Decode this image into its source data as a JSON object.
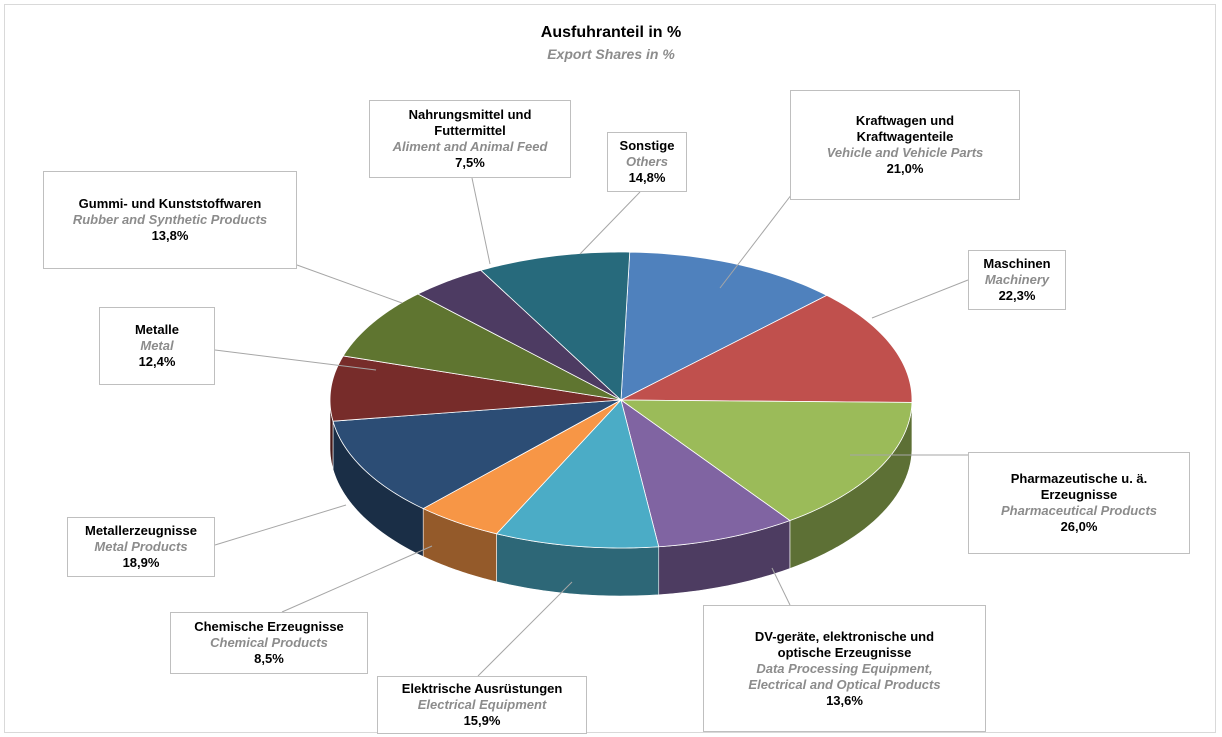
{
  "chart_data": {
    "type": "pie3d",
    "title": "Ausfuhranteil in %",
    "subtitle": "Export Shares in %",
    "categories": [
      "Kraftwagen und\nKraftwagenteile",
      "Maschinen",
      "Pharmazeutische u. ä.\nErzeugnisse",
      "DV-geräte, elektronische und\noptische Erzeugnisse",
      "Elektrische Ausrüstungen",
      "Chemische Erzeugnisse",
      "Metallerzeugnisse",
      "Metalle",
      "Gummi- und Kunststoffwaren",
      "Nahrungsmittel und\nFuttermittel",
      "Sonstige"
    ],
    "categories_en": [
      "Vehicle and Vehicle Parts",
      "Machinery",
      "Pharmaceutical Products",
      "Data Processing Equipment,\nElectrical and Optical Products",
      "Electrical Equipment",
      "Chemical Products",
      "Metal Products",
      "Metal",
      "Rubber and Synthetic Products",
      "Aliment and Animal Feed",
      "Others"
    ],
    "values": [
      21.0,
      22.3,
      26.0,
      13.6,
      15.9,
      8.5,
      18.9,
      12.4,
      13.8,
      7.5,
      14.8
    ],
    "value_labels": [
      "21,0%",
      "22,3%",
      "26,0%",
      "13,6%",
      "15,9%",
      "8,5%",
      "18,9%",
      "12,4%",
      "13,8%",
      "7,5%",
      "14,8%"
    ],
    "colors": [
      "#4f81bd",
      "#c0504d",
      "#9bbb59",
      "#8064a2",
      "#4bacc6",
      "#f79646",
      "#2c4d75",
      "#772c2a",
      "#5f7530",
      "#4d3b62",
      "#276a7c"
    ]
  }
}
